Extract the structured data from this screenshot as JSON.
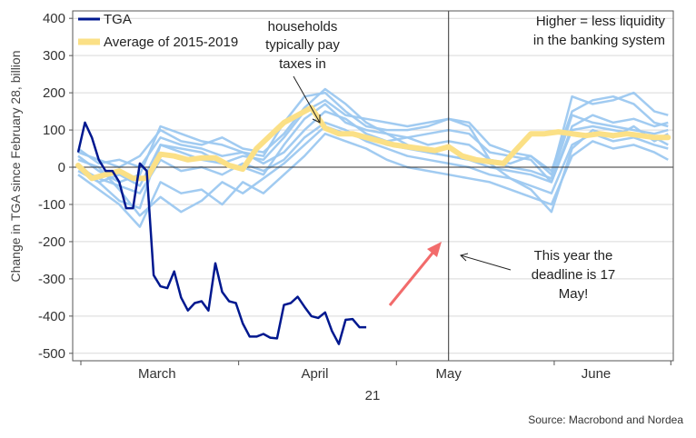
{
  "chart_data": {
    "type": "line",
    "ylabel": "Change in TGA since February 28, billion",
    "xlabel": "21",
    "ylim": [
      -520,
      420
    ],
    "y_ticks": [
      400,
      300,
      200,
      100,
      0,
      -100,
      -200,
      -300,
      -400,
      -500
    ],
    "x_tick_labels": [
      {
        "label": "March"
      },
      {
        "label": "April"
      },
      {
        "label": "May"
      },
      {
        "label": "June"
      }
    ],
    "grid": "horizontal",
    "legend_position": "top-left",
    "colors": {
      "tga": "#00188f",
      "average": "#fbe086",
      "history": "#9cc8f0",
      "arrow": "#f26b6b",
      "grid": "#d9d9d9",
      "axis": "#555555"
    },
    "series": [
      {
        "name": "TGA",
        "x": [
          0,
          1,
          2,
          3,
          4,
          5,
          6,
          7,
          8,
          9,
          10,
          11,
          12,
          13,
          14,
          15,
          16,
          17,
          18,
          19,
          20,
          21,
          22,
          23,
          24,
          25,
          26,
          27,
          28,
          29,
          30,
          31,
          32,
          33,
          34,
          35,
          36,
          37,
          38,
          39,
          40,
          41,
          42
        ],
        "values": [
          40,
          120,
          80,
          20,
          -10,
          -10,
          -40,
          -110,
          -110,
          10,
          -10,
          -290,
          -320,
          -325,
          -280,
          -350,
          -385,
          -365,
          -360,
          -385,
          -258,
          -335,
          -360,
          -365,
          -420,
          -455,
          -455,
          -448,
          -458,
          -460,
          -370,
          -365,
          -348,
          -375,
          -400,
          -405,
          -390,
          -440,
          -475,
          -410,
          -408,
          -430,
          -430
        ]
      },
      {
        "name": "Average of 2015-2019",
        "x": [
          0,
          2,
          4,
          6,
          8,
          10,
          12,
          14,
          16,
          18,
          20,
          22,
          24,
          26,
          28,
          30,
          32,
          34,
          36,
          38,
          40,
          42,
          44,
          46,
          48,
          50,
          52,
          54,
          56,
          58,
          60,
          62,
          64,
          66,
          68,
          70,
          72,
          74,
          76,
          78,
          80,
          82,
          84,
          86
        ],
        "values": [
          5,
          -30,
          -20,
          -10,
          -30,
          -30,
          35,
          30,
          20,
          25,
          25,
          5,
          -5,
          50,
          85,
          120,
          140,
          160,
          105,
          90,
          90,
          80,
          70,
          60,
          55,
          50,
          45,
          55,
          30,
          20,
          15,
          10,
          50,
          90,
          90,
          95,
          90,
          85,
          90,
          85,
          90,
          85,
          80,
          80
        ]
      }
    ],
    "background_series": [
      {
        "x": [
          0,
          3,
          6,
          9,
          12,
          15,
          18,
          21,
          24,
          27,
          30,
          33,
          36,
          39,
          42,
          45,
          48,
          51,
          54,
          57,
          60,
          63,
          66,
          69,
          72,
          75,
          78,
          81,
          84,
          86
        ],
        "values": [
          10,
          -40,
          -90,
          -110,
          60,
          50,
          40,
          10,
          30,
          20,
          80,
          150,
          180,
          140,
          130,
          120,
          110,
          120,
          130,
          110,
          20,
          10,
          30,
          -20,
          190,
          170,
          180,
          200,
          150,
          140
        ]
      },
      {
        "x": [
          0,
          3,
          6,
          9,
          12,
          15,
          18,
          21,
          24,
          27,
          30,
          33,
          36,
          39,
          42,
          45,
          48,
          51,
          54,
          57,
          60,
          63,
          66,
          69,
          72,
          75,
          78,
          81,
          84,
          86
        ],
        "values": [
          30,
          -10,
          -40,
          -20,
          110,
          90,
          70,
          60,
          40,
          30,
          120,
          190,
          200,
          150,
          110,
          100,
          100,
          110,
          130,
          120,
          60,
          40,
          30,
          -10,
          150,
          180,
          190,
          170,
          120,
          110
        ]
      },
      {
        "x": [
          0,
          3,
          6,
          9,
          12,
          15,
          18,
          21,
          24,
          27,
          30,
          33,
          36,
          39,
          42,
          45,
          48,
          51,
          54,
          57,
          60,
          63,
          66,
          69,
          72,
          75,
          78,
          81,
          84,
          86
        ],
        "values": [
          20,
          0,
          -60,
          -130,
          -80,
          -120,
          -90,
          -40,
          -70,
          -30,
          10,
          60,
          110,
          90,
          80,
          60,
          50,
          40,
          30,
          20,
          10,
          -30,
          -60,
          -120,
          50,
          100,
          80,
          110,
          70,
          90
        ]
      },
      {
        "x": [
          0,
          3,
          6,
          9,
          12,
          15,
          18,
          21,
          24,
          27,
          30,
          33,
          36,
          39,
          42,
          45,
          48,
          51,
          54,
          57,
          60,
          63,
          66,
          69,
          72,
          75,
          78,
          81,
          84,
          86
        ],
        "values": [
          50,
          10,
          20,
          0,
          80,
          60,
          50,
          30,
          40,
          10,
          40,
          100,
          150,
          130,
          90,
          70,
          80,
          90,
          100,
          90,
          40,
          30,
          20,
          -40,
          100,
          110,
          100,
          90,
          80,
          60
        ]
      },
      {
        "x": [
          0,
          3,
          6,
          9,
          12,
          15,
          18,
          21,
          24,
          27,
          30,
          33,
          36,
          39,
          42,
          45,
          48,
          51,
          54,
          57,
          60,
          63,
          66,
          69,
          72,
          75,
          78,
          81,
          84,
          86
        ],
        "values": [
          -20,
          -60,
          -100,
          -160,
          -40,
          -70,
          -60,
          -100,
          -40,
          -70,
          -20,
          30,
          90,
          70,
          50,
          20,
          0,
          -10,
          -20,
          -30,
          -40,
          -60,
          -80,
          -100,
          30,
          70,
          50,
          60,
          40,
          20
        ]
      },
      {
        "x": [
          0,
          3,
          6,
          9,
          12,
          15,
          18,
          21,
          24,
          27,
          30,
          33,
          36,
          39,
          42,
          45,
          48,
          51,
          54,
          57,
          60,
          63,
          66,
          69,
          72,
          75,
          78,
          81,
          84,
          86
        ],
        "values": [
          40,
          20,
          0,
          30,
          100,
          70,
          60,
          80,
          50,
          40,
          90,
          160,
          210,
          170,
          120,
          90,
          80,
          60,
          70,
          60,
          20,
          0,
          -10,
          -30,
          140,
          120,
          110,
          100,
          90,
          100
        ]
      },
      {
        "x": [
          0,
          3,
          6,
          9,
          12,
          15,
          18,
          21,
          24,
          27,
          30,
          33,
          36,
          39,
          42,
          45,
          48,
          51,
          54,
          57,
          60,
          63,
          66,
          69,
          72,
          75,
          78,
          81,
          84,
          86
        ],
        "values": [
          0,
          -30,
          -50,
          -70,
          20,
          -10,
          0,
          -20,
          10,
          -10,
          20,
          80,
          120,
          100,
          70,
          50,
          30,
          20,
          10,
          0,
          -20,
          -30,
          -50,
          -70,
          60,
          90,
          70,
          80,
          60,
          50
        ]
      },
      {
        "x": [
          0,
          3,
          6,
          9,
          12,
          15,
          18,
          21,
          24,
          27,
          30,
          33,
          36,
          39,
          42,
          45,
          48,
          51,
          54,
          57,
          60,
          63,
          66,
          69,
          72,
          75,
          78,
          81,
          84,
          86
        ],
        "values": [
          -10,
          -40,
          -20,
          -50,
          60,
          40,
          20,
          10,
          0,
          -20,
          60,
          130,
          170,
          120,
          100,
          90,
          60,
          40,
          30,
          20,
          0,
          -10,
          -20,
          -40,
          110,
          140,
          120,
          130,
          110,
          120
        ]
      }
    ],
    "annotations": [
      {
        "id": "households",
        "lines": [
          "households",
          "typically pay",
          "taxes in"
        ]
      },
      {
        "id": "liquidity",
        "lines": [
          "Higher = less liquidity",
          "in the banking system"
        ]
      },
      {
        "id": "deadline",
        "lines": [
          "This year the",
          "deadline is 17",
          "May!"
        ]
      }
    ],
    "source": "Source: Macrobond and Nordea"
  }
}
